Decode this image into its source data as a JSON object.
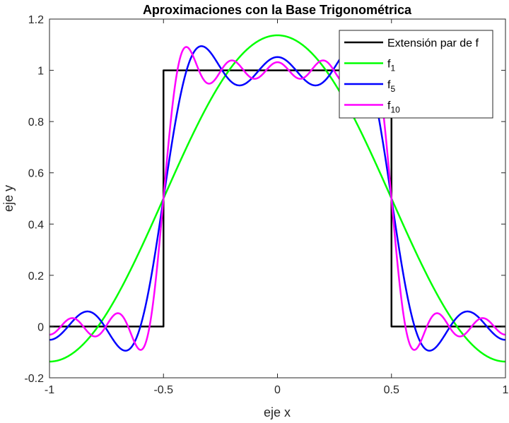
{
  "chart_data": {
    "type": "line",
    "title": "Aproximaciones con la Base Trigonométrica",
    "xlabel": "eje x",
    "ylabel": "eje y",
    "xlim": [
      -1,
      1
    ],
    "ylim": [
      -0.2,
      1.2
    ],
    "xticks": [
      -1,
      -0.5,
      0,
      0.5,
      1
    ],
    "xtick_labels": [
      "-1",
      "-0.5",
      "0",
      "0.5",
      "1"
    ],
    "yticks": [
      -0.2,
      0,
      0.2,
      0.4,
      0.6,
      0.8,
      1,
      1.2
    ],
    "ytick_labels": [
      "-0.2",
      "0",
      "0.2",
      "0.4",
      "0.6",
      "0.8",
      "1",
      "1.2"
    ],
    "grid": false,
    "legend_position": "top-right",
    "series": [
      {
        "name": "Extensión par de f",
        "legend_base": "Extensión par de f",
        "legend_sub": "",
        "color": "#000000",
        "kind": "step",
        "x": [
          -1,
          -0.5,
          -0.5,
          0.5,
          0.5,
          1
        ],
        "y": [
          0,
          0,
          1,
          1,
          0,
          0
        ]
      },
      {
        "name": "f1",
        "legend_base": "f",
        "legend_sub": "1",
        "color": "#00ff00",
        "kind": "fourier",
        "N": 1
      },
      {
        "name": "f5",
        "legend_base": "f",
        "legend_sub": "5",
        "color": "#0000ff",
        "kind": "fourier",
        "N": 5
      },
      {
        "name": "f10",
        "legend_base": "f",
        "legend_sub": "10",
        "color": "#ff00ff",
        "kind": "fourier",
        "N": 10
      }
    ]
  }
}
